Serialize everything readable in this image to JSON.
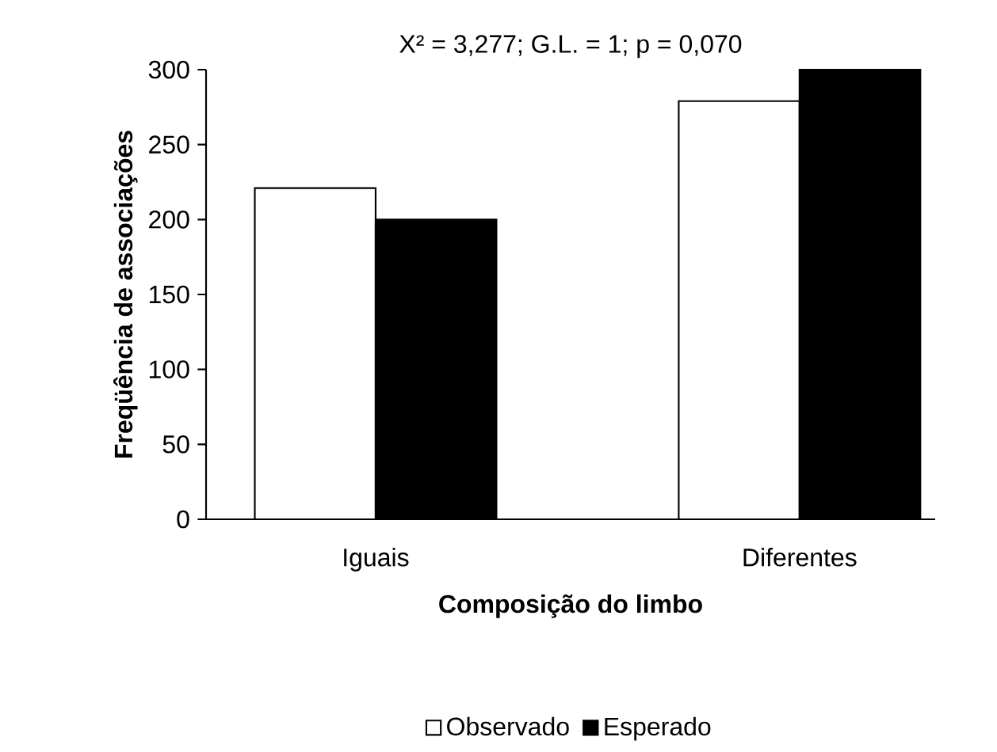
{
  "chart_data": {
    "type": "bar",
    "title": "X² = 3,277; G.L. = 1; p = 0,070",
    "xlabel": "Composição do limbo",
    "ylabel": "Freqüência de associações",
    "categories": [
      "Iguais",
      "Diferentes"
    ],
    "series": [
      {
        "name": "Observado",
        "color": "#ffffff",
        "values": [
          221,
          279
        ]
      },
      {
        "name": "Esperado",
        "color": "#000000",
        "values": [
          200,
          300
        ]
      }
    ],
    "ylim": [
      0,
      300
    ],
    "yticks": [
      0,
      50,
      100,
      150,
      200,
      250,
      300
    ],
    "legend": "bottom"
  }
}
